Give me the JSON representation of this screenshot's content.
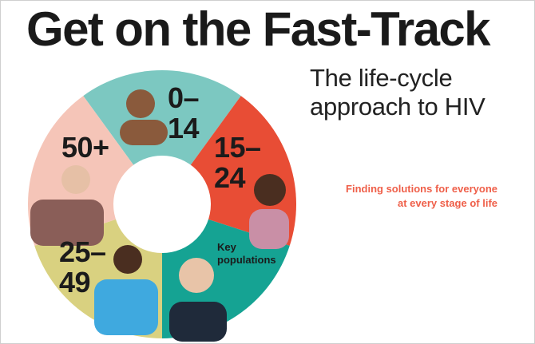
{
  "title": "Get on the Fast-Track",
  "subtitle_line1": "The life-cycle",
  "subtitle_line2": "approach to HIV",
  "tagline_line1": "Finding solutions for everyone",
  "tagline_line2": "at every stage of life",
  "colors": {
    "accent": "#ef5f49",
    "title": "#1a1a1a"
  },
  "segments": [
    {
      "id": "0-14",
      "line1": "0–",
      "line2": "14",
      "color": "#7cc8c1",
      "photo": "baby-photo"
    },
    {
      "id": "15-24",
      "line1": "15–",
      "line2": "24",
      "color": "#e84d35",
      "photo": "teen-photo"
    },
    {
      "id": "key-populations",
      "line1": "Key",
      "line2": "populations",
      "color": "#15a393",
      "photo": "young-man-photo"
    },
    {
      "id": "25-49",
      "line1": "25–",
      "line2": "49",
      "color": "#d9d180",
      "photo": "couple-photo"
    },
    {
      "id": "50+",
      "line1": "50+",
      "line2": "",
      "color": "#f5c5b8",
      "photo": "older-couple-photo"
    }
  ]
}
